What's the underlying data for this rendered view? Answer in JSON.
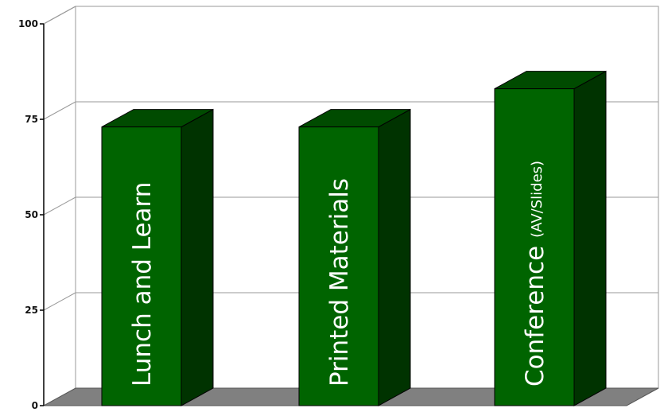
{
  "chart_data": {
    "type": "bar",
    "categories": [
      "Lunch and Learn",
      "Printed Materials",
      "Conference (AV/Slides)"
    ],
    "category_labels": [
      {
        "main": "Lunch and Learn",
        "small": ""
      },
      {
        "main": "Printed Materials",
        "small": ""
      },
      {
        "main": "Conference",
        "small": "(AV/Slides)"
      }
    ],
    "values": [
      73,
      73,
      83
    ],
    "title": "",
    "xlabel": "",
    "ylabel": "",
    "ylim": [
      0,
      100
    ],
    "yticks": [
      0,
      25,
      50,
      75,
      100
    ],
    "ytick_labels": [
      "0",
      "25",
      "50",
      "75",
      "100"
    ],
    "grid": true,
    "three_d": true,
    "legend": "none"
  },
  "colors": {
    "bar_front": "#006400",
    "bar_side": "#003300",
    "bar_top": "#004b00",
    "bar_outline": "#000000",
    "floor": "#808080",
    "wall": "#ffffff",
    "grid": "#9a9a9a",
    "label_text": "#ffffff"
  }
}
